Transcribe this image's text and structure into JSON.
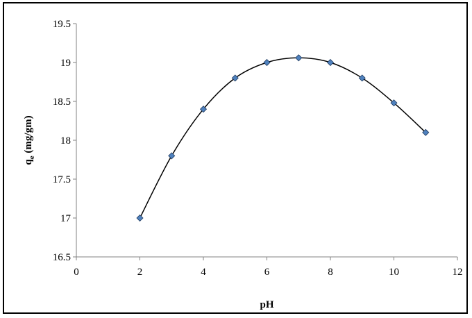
{
  "chart_data": {
    "type": "scatter",
    "title": "",
    "xlabel": "pH",
    "ylabel": {
      "main": "q",
      "sub": "e",
      "rest": " (mg/gm)"
    },
    "xlim": [
      0,
      12
    ],
    "ylim": [
      16.5,
      19.5
    ],
    "x_ticks": [
      "0",
      "2",
      "4",
      "6",
      "8",
      "10",
      "12"
    ],
    "y_ticks": [
      "16.5",
      "17",
      "17.5",
      "18",
      "18.5",
      "19",
      "19.5"
    ],
    "grid": false,
    "legend": "none",
    "series": [
      {
        "x": [
          2,
          3,
          4,
          5,
          6,
          7,
          8,
          9,
          10,
          11
        ],
        "y": [
          17.0,
          17.8,
          18.4,
          18.8,
          19.0,
          19.06,
          19.0,
          18.8,
          18.48,
          18.1
        ],
        "marker": "diamond",
        "marker_color": "#4f81bd",
        "line": "smooth",
        "line_color": "#000000"
      }
    ]
  }
}
